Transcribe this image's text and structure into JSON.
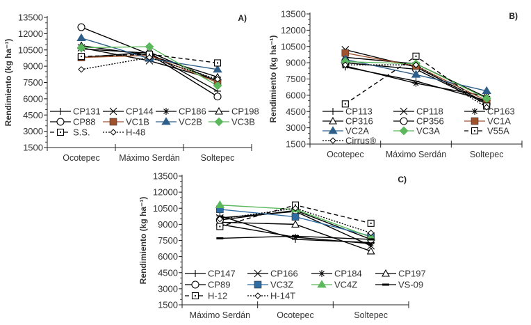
{
  "chart_data": [
    {
      "type": "line",
      "panel": "A)",
      "ylabel": "Rendimiento (kg ha⁻¹)",
      "xlabel": "",
      "categories": [
        "Ocotepec",
        "Máximo Serdán",
        "Soltepec"
      ],
      "ylim": [
        1500,
        13500
      ],
      "yticks": [
        1500,
        3000,
        4500,
        6000,
        7500,
        9000,
        10500,
        12000,
        13500
      ],
      "grid": false,
      "legend": "bottom-inside",
      "series": [
        {
          "name": "CP131",
          "marker": "plus",
          "color": "#000000",
          "dash": "solid",
          "values": [
            10600,
            10200,
            6700
          ]
        },
        {
          "name": "CP144",
          "marker": "x",
          "color": "#000000",
          "dash": "solid",
          "values": [
            10700,
            9500,
            7700
          ]
        },
        {
          "name": "CP186",
          "marker": "asterisk",
          "color": "#000000",
          "dash": "solid",
          "values": [
            9800,
            10300,
            7600
          ]
        },
        {
          "name": "CP198",
          "marker": "triangle-open",
          "color": "#000000",
          "dash": "solid",
          "values": [
            10900,
            10000,
            8000
          ]
        },
        {
          "name": "CP88",
          "marker": "circle-open",
          "color": "#000000",
          "dash": "solid",
          "values": [
            12600,
            10100,
            6200
          ]
        },
        {
          "name": "VC1B",
          "marker": "square",
          "color": "#a0522d",
          "dash": "solid",
          "values": [
            9800,
            10000,
            7500
          ]
        },
        {
          "name": "VC2B",
          "marker": "triangle",
          "color": "#2e5f8a",
          "dash": "solid",
          "values": [
            11600,
            9700,
            8700
          ]
        },
        {
          "name": "VC3B",
          "marker": "diamond",
          "color": "#5cb85c",
          "dash": "solid",
          "values": [
            10700,
            10800,
            7200
          ]
        },
        {
          "name": "S.S.",
          "marker": "square-open",
          "color": "#000000",
          "dash": "dashed",
          "values": [
            9900,
            10100,
            9300
          ]
        },
        {
          "name": "H-48",
          "marker": "diamond-open",
          "color": "#000000",
          "dash": "dotted",
          "values": [
            8700,
            9800,
            7800
          ]
        }
      ]
    },
    {
      "type": "line",
      "panel": "B)",
      "ylabel": "Rendimiento (kg ha⁻¹)",
      "xlabel": "",
      "categories": [
        "Ocotepec",
        "Máximo Serdán",
        "Soltepec"
      ],
      "ylim": [
        1500,
        13500
      ],
      "yticks": [
        1500,
        3000,
        4500,
        6000,
        7500,
        9000,
        10500,
        12000,
        13500
      ],
      "grid": false,
      "legend": "bottom-inside",
      "series": [
        {
          "name": "CP113",
          "marker": "plus",
          "color": "#000000",
          "dash": "solid",
          "values": [
            8600,
            7300,
            5500
          ]
        },
        {
          "name": "CP118",
          "marker": "x",
          "color": "#000000",
          "dash": "solid",
          "values": [
            10200,
            8600,
            5300
          ]
        },
        {
          "name": "CP163",
          "marker": "asterisk",
          "color": "#000000",
          "dash": "solid",
          "values": [
            8700,
            7100,
            5900
          ]
        },
        {
          "name": "CP316",
          "marker": "triangle-open",
          "color": "#000000",
          "dash": "solid",
          "values": [
            9500,
            8900,
            5800
          ]
        },
        {
          "name": "CP356",
          "marker": "circle-open",
          "color": "#000000",
          "dash": "solid",
          "values": [
            9000,
            8400,
            5200
          ]
        },
        {
          "name": "VC1A",
          "marker": "square",
          "color": "#a0522d",
          "dash": "solid",
          "values": [
            9900,
            8700,
            5500
          ]
        },
        {
          "name": "VC2A",
          "marker": "triangle",
          "color": "#2e5f8a",
          "dash": "solid",
          "values": [
            9300,
            7900,
            6400
          ]
        },
        {
          "name": "VC3A",
          "marker": "diamond",
          "color": "#5cb85c",
          "dash": "solid",
          "values": [
            9100,
            8900,
            5700
          ]
        },
        {
          "name": "V55A",
          "marker": "square-open",
          "color": "#000000",
          "dash": "dashed",
          "values": [
            5200,
            9600,
            5000
          ]
        },
        {
          "name": "Cirrus®",
          "marker": "diamond-open",
          "color": "#000000",
          "dash": "dotted",
          "values": [
            8800,
            8800,
            4900
          ]
        }
      ]
    },
    {
      "type": "line",
      "panel": "C)",
      "ylabel": "Rendimiento (kg ha⁻¹)",
      "xlabel": "",
      "categories": [
        "Máximo Serdán",
        "Ocotepec",
        "Soltepec"
      ],
      "ylim": [
        1500,
        13500
      ],
      "yticks": [
        1500,
        3000,
        4500,
        6000,
        7500,
        9000,
        10500,
        12000,
        13500
      ],
      "grid": false,
      "legend": "bottom-inside",
      "series": [
        {
          "name": "CP147",
          "marker": "plus",
          "color": "#000000",
          "dash": "solid",
          "values": [
            9800,
            7600,
            7300
          ]
        },
        {
          "name": "CP166",
          "marker": "x",
          "color": "#000000",
          "dash": "solid",
          "values": [
            9600,
            10200,
            7000
          ]
        },
        {
          "name": "CP184",
          "marker": "asterisk",
          "color": "#000000",
          "dash": "solid",
          "values": [
            9000,
            7800,
            7200
          ]
        },
        {
          "name": "CP197",
          "marker": "triangle-open",
          "color": "#000000",
          "dash": "solid",
          "values": [
            9200,
            9000,
            6500
          ]
        },
        {
          "name": "CP89",
          "marker": "circle-open",
          "color": "#000000",
          "dash": "solid",
          "values": [
            9400,
            10300,
            7600
          ]
        },
        {
          "name": "VC3Z",
          "marker": "square",
          "color": "#2e6da4",
          "dash": "solid",
          "values": [
            10400,
            9700,
            7900
          ]
        },
        {
          "name": "VC4Z",
          "marker": "triangle",
          "color": "#5cb85c",
          "dash": "solid",
          "values": [
            10800,
            10400,
            7800
          ]
        },
        {
          "name": "VS-09",
          "marker": "dash",
          "color": "#000000",
          "dash": "solid",
          "values": [
            7700,
            7900,
            7600
          ]
        },
        {
          "name": "H-12",
          "marker": "square-open",
          "color": "#000000",
          "dash": "dashed",
          "values": [
            8800,
            10800,
            9100
          ]
        },
        {
          "name": "H-14T",
          "marker": "diamond-open",
          "color": "#000000",
          "dash": "dotted",
          "values": [
            9500,
            10500,
            8200
          ]
        }
      ]
    }
  ]
}
